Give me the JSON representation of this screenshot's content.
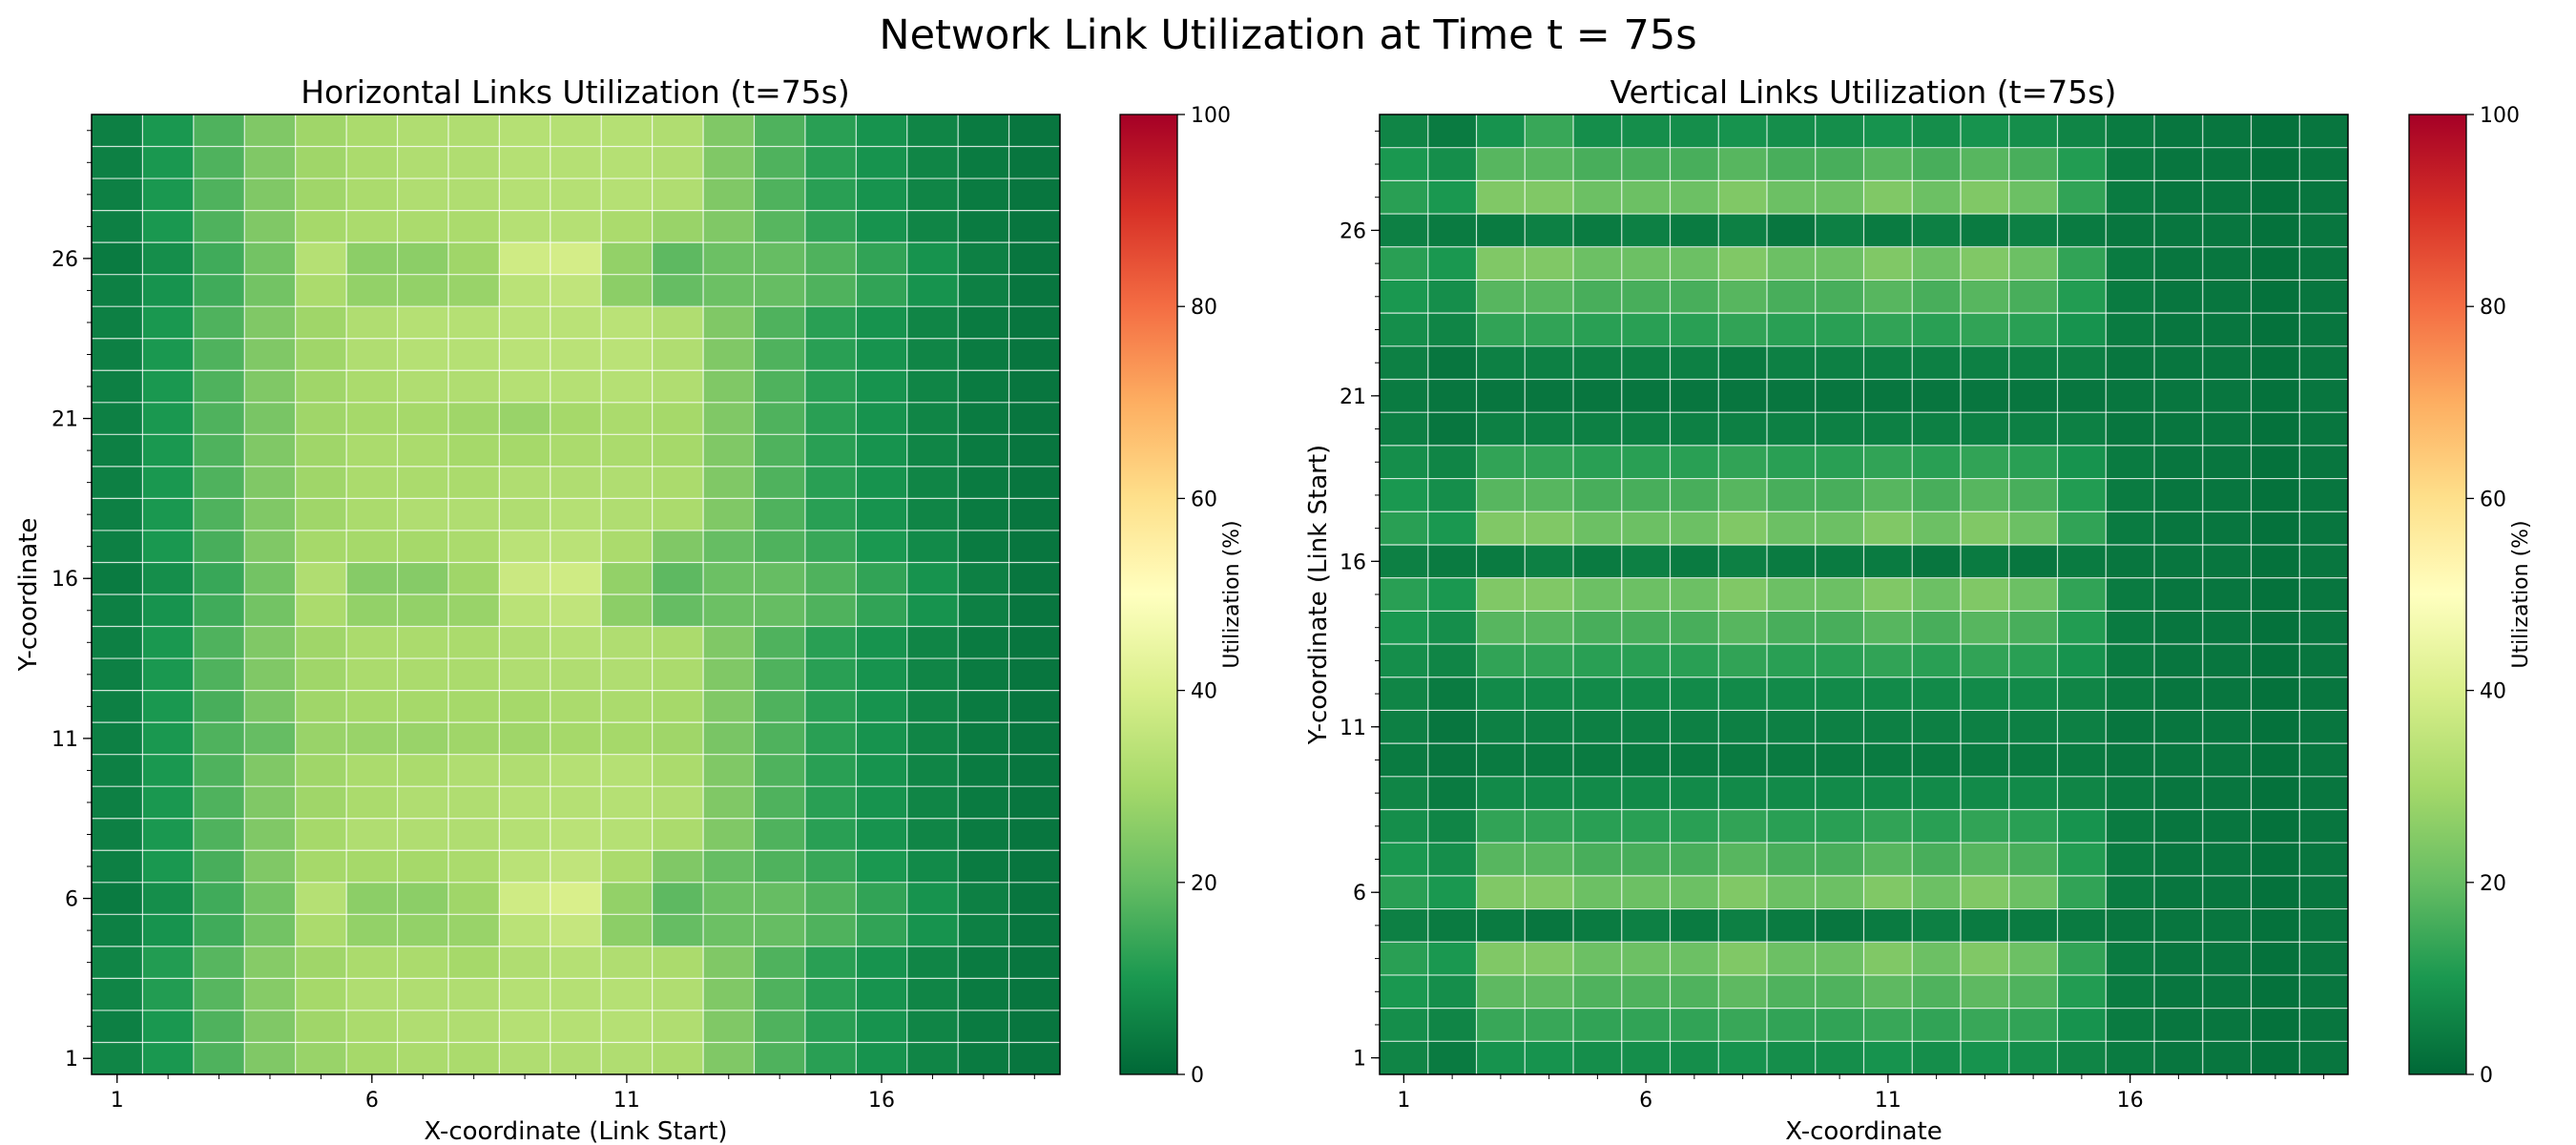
{
  "figure_title": "Network Link Utilization at Time t = 75s",
  "colors": {
    "colormap": "RdYlGn_r",
    "grid_line": "#ffffff",
    "frame": "#000000"
  },
  "chart_data": [
    {
      "type": "heatmap",
      "title": "Horizontal Links Utilization (t=75s)",
      "xlabel": "X-coordinate (Link Start)",
      "ylabel": "Y-coordinate",
      "colorbar_label": "Utilization (%)",
      "colorbar_ticks": [
        "0",
        "20",
        "40",
        "60",
        "80",
        "100"
      ],
      "value_range": [
        0,
        100
      ],
      "x_ticks": [
        "1",
        "6",
        "11",
        "16"
      ],
      "y_ticks": [
        "1",
        "6",
        "11",
        "16",
        "21",
        "26"
      ],
      "n_cols": 19,
      "n_rows": 30,
      "x_start": 1,
      "y_start": 1,
      "row_order": "bottom-to-top",
      "grid": true,
      "values": [
        [
          6,
          10,
          17,
          24,
          28,
          30,
          31,
          31,
          32,
          32,
          32,
          31,
          24,
          17,
          12,
          9,
          6,
          4,
          3
        ],
        [
          5,
          10,
          17,
          24,
          29,
          31,
          32,
          32,
          33,
          33,
          33,
          32,
          24,
          17,
          12,
          9,
          6,
          4,
          3
        ],
        [
          6,
          11,
          18,
          25,
          30,
          32,
          32,
          32,
          33,
          33,
          33,
          32,
          24,
          17,
          12,
          9,
          6,
          4,
          3
        ],
        [
          6,
          11,
          18,
          25,
          29,
          31,
          31,
          30,
          32,
          33,
          32,
          31,
          24,
          17,
          12,
          9,
          6,
          4,
          3
        ],
        [
          5,
          9,
          15,
          22,
          31,
          27,
          27,
          28,
          34,
          36,
          26,
          20,
          21,
          20,
          17,
          13,
          9,
          5,
          3
        ],
        [
          4,
          8,
          15,
          22,
          33,
          26,
          26,
          29,
          38,
          40,
          27,
          19,
          21,
          20,
          17,
          13,
          9,
          5,
          3
        ],
        [
          5,
          10,
          16,
          24,
          30,
          30,
          30,
          31,
          34,
          35,
          31,
          24,
          20,
          17,
          14,
          10,
          7,
          4,
          3
        ],
        [
          5,
          10,
          17,
          24,
          30,
          32,
          32,
          32,
          33,
          34,
          33,
          31,
          24,
          17,
          12,
          9,
          6,
          4,
          3
        ],
        [
          5,
          10,
          17,
          24,
          29,
          31,
          32,
          32,
          33,
          33,
          33,
          32,
          24,
          17,
          12,
          9,
          6,
          4,
          3
        ],
        [
          5,
          10,
          17,
          24,
          29,
          31,
          31,
          32,
          32,
          33,
          33,
          31,
          24,
          17,
          12,
          9,
          6,
          4,
          3
        ],
        [
          5,
          10,
          17,
          20,
          28,
          28,
          28,
          29,
          29,
          30,
          30,
          29,
          23,
          17,
          12,
          9,
          6,
          4,
          3
        ],
        [
          5,
          10,
          16,
          23,
          29,
          30,
          30,
          30,
          30,
          31,
          31,
          30,
          24,
          17,
          12,
          9,
          6,
          4,
          3
        ],
        [
          5,
          10,
          17,
          24,
          29,
          31,
          31,
          31,
          32,
          32,
          32,
          31,
          24,
          17,
          12,
          9,
          6,
          4,
          3
        ],
        [
          5,
          10,
          17,
          24,
          29,
          31,
          31,
          31,
          32,
          33,
          32,
          31,
          24,
          17,
          12,
          9,
          6,
          4,
          3
        ],
        [
          5,
          9,
          15,
          22,
          31,
          27,
          27,
          28,
          34,
          35,
          26,
          20,
          21,
          20,
          17,
          13,
          9,
          5,
          3
        ],
        [
          4,
          8,
          14,
          22,
          32,
          25,
          25,
          29,
          37,
          38,
          27,
          19,
          21,
          20,
          17,
          13,
          9,
          5,
          3
        ],
        [
          5,
          10,
          16,
          24,
          30,
          30,
          30,
          31,
          34,
          34,
          31,
          24,
          20,
          17,
          14,
          10,
          7,
          4,
          3
        ],
        [
          5,
          10,
          17,
          24,
          29,
          31,
          32,
          32,
          32,
          33,
          32,
          31,
          24,
          17,
          12,
          9,
          6,
          4,
          3
        ],
        [
          5,
          10,
          17,
          24,
          29,
          31,
          31,
          31,
          32,
          32,
          32,
          31,
          24,
          17,
          12,
          9,
          6,
          4,
          3
        ],
        [
          5,
          10,
          17,
          24,
          29,
          31,
          31,
          30,
          30,
          31,
          31,
          30,
          24,
          17,
          12,
          9,
          6,
          4,
          3
        ],
        [
          5,
          10,
          17,
          23,
          29,
          30,
          30,
          29,
          28,
          30,
          31,
          30,
          24,
          17,
          12,
          9,
          6,
          4,
          3
        ],
        [
          5,
          10,
          17,
          24,
          29,
          31,
          32,
          32,
          33,
          33,
          33,
          32,
          24,
          17,
          12,
          9,
          6,
          4,
          3
        ],
        [
          5,
          10,
          17,
          24,
          29,
          32,
          33,
          33,
          34,
          34,
          34,
          32,
          24,
          17,
          12,
          9,
          6,
          4,
          3
        ],
        [
          5,
          10,
          17,
          24,
          29,
          32,
          33,
          33,
          34,
          34,
          34,
          32,
          24,
          17,
          12,
          9,
          6,
          4,
          3
        ],
        [
          5,
          9,
          15,
          22,
          31,
          27,
          27,
          28,
          34,
          35,
          26,
          20,
          21,
          20,
          17,
          13,
          9,
          5,
          3
        ],
        [
          4,
          8,
          15,
          22,
          33,
          26,
          26,
          29,
          38,
          39,
          27,
          19,
          21,
          20,
          17,
          13,
          9,
          5,
          3
        ],
        [
          5,
          10,
          17,
          24,
          30,
          31,
          31,
          31,
          33,
          33,
          31,
          28,
          24,
          18,
          13,
          9,
          6,
          4,
          3
        ],
        [
          5,
          10,
          17,
          24,
          29,
          31,
          32,
          32,
          33,
          33,
          33,
          32,
          24,
          17,
          12,
          9,
          6,
          4,
          3
        ],
        [
          5,
          10,
          17,
          24,
          29,
          31,
          32,
          32,
          33,
          33,
          33,
          32,
          24,
          17,
          12,
          9,
          6,
          4,
          3
        ],
        [
          5,
          10,
          17,
          24,
          29,
          31,
          32,
          32,
          33,
          33,
          33,
          32,
          24,
          17,
          12,
          9,
          6,
          4,
          3
        ]
      ]
    },
    {
      "type": "heatmap",
      "title": "Vertical Links Utilization (t=75s)",
      "xlabel": "X-coordinate",
      "ylabel": "Y-coordinate (Link Start)",
      "colorbar_label": "Utilization (%)",
      "colorbar_ticks": [
        "0",
        "20",
        "40",
        "60",
        "80",
        "100"
      ],
      "value_range": [
        0,
        100
      ],
      "x_ticks": [
        "1",
        "6",
        "11",
        "16"
      ],
      "y_ticks": [
        "1",
        "6",
        "11",
        "16",
        "21",
        "26"
      ],
      "n_cols": 20,
      "n_rows": 29,
      "x_start": 1,
      "y_start": 1,
      "row_order": "bottom-to-top",
      "grid": true,
      "values": [
        [
          6,
          4,
          9,
          9,
          8,
          8,
          8,
          9,
          8,
          8,
          9,
          8,
          9,
          8,
          6,
          4,
          3,
          3,
          2,
          3
        ],
        [
          8,
          6,
          14,
          14,
          13,
          13,
          13,
          14,
          13,
          13,
          14,
          13,
          14,
          13,
          9,
          4,
          3,
          3,
          2,
          3
        ],
        [
          10,
          8,
          19,
          19,
          17,
          17,
          17,
          19,
          17,
          17,
          19,
          17,
          19,
          17,
          11,
          4,
          3,
          3,
          2,
          3
        ],
        [
          12,
          10,
          24,
          24,
          21,
          21,
          21,
          24,
          21,
          21,
          24,
          21,
          24,
          21,
          13,
          4,
          3,
          3,
          2,
          3
        ],
        [
          5,
          4,
          4,
          3,
          4,
          5,
          4,
          5,
          4,
          3,
          4,
          5,
          4,
          4,
          4,
          3,
          3,
          3,
          2,
          3
        ],
        [
          12,
          10,
          24,
          24,
          21,
          21,
          21,
          24,
          21,
          21,
          24,
          21,
          24,
          21,
          13,
          4,
          3,
          3,
          2,
          3
        ],
        [
          10,
          8,
          18,
          18,
          16,
          16,
          16,
          18,
          16,
          16,
          18,
          16,
          18,
          16,
          11,
          4,
          3,
          3,
          2,
          3
        ],
        [
          8,
          6,
          13,
          13,
          12,
          12,
          12,
          13,
          12,
          12,
          13,
          12,
          13,
          12,
          9,
          4,
          3,
          3,
          2,
          3
        ],
        [
          6,
          4,
          7,
          7,
          7,
          7,
          7,
          7,
          7,
          7,
          7,
          7,
          7,
          7,
          6,
          4,
          3,
          3,
          2,
          3
        ],
        [
          4,
          3,
          4,
          4,
          4,
          4,
          4,
          4,
          4,
          4,
          4,
          4,
          4,
          4,
          4,
          3,
          3,
          3,
          2,
          3
        ],
        [
          5,
          3,
          5,
          5,
          5,
          5,
          5,
          5,
          5,
          5,
          5,
          5,
          5,
          5,
          5,
          3,
          3,
          3,
          2,
          3
        ],
        [
          6,
          4,
          7,
          7,
          7,
          7,
          7,
          7,
          7,
          7,
          7,
          7,
          7,
          7,
          6,
          4,
          3,
          3,
          2,
          3
        ],
        [
          8,
          6,
          13,
          13,
          12,
          12,
          12,
          13,
          12,
          12,
          13,
          12,
          13,
          12,
          9,
          4,
          3,
          3,
          2,
          3
        ],
        [
          10,
          8,
          18,
          18,
          16,
          16,
          16,
          18,
          16,
          16,
          18,
          16,
          18,
          16,
          11,
          4,
          3,
          3,
          2,
          3
        ],
        [
          12,
          10,
          24,
          24,
          21,
          21,
          21,
          24,
          21,
          21,
          24,
          21,
          24,
          21,
          13,
          4,
          3,
          3,
          2,
          3
        ],
        [
          5,
          4,
          4,
          5,
          4,
          5,
          4,
          5,
          4,
          4,
          4,
          3,
          4,
          3,
          4,
          3,
          3,
          3,
          2,
          3
        ],
        [
          12,
          10,
          24,
          24,
          21,
          21,
          21,
          24,
          21,
          21,
          24,
          21,
          24,
          21,
          13,
          4,
          3,
          3,
          2,
          3
        ],
        [
          10,
          8,
          18,
          18,
          16,
          16,
          16,
          18,
          16,
          16,
          18,
          16,
          18,
          16,
          11,
          4,
          3,
          3,
          2,
          3
        ],
        [
          8,
          6,
          13,
          13,
          12,
          12,
          12,
          13,
          12,
          12,
          13,
          12,
          13,
          12,
          9,
          4,
          3,
          3,
          2,
          3
        ],
        [
          5,
          3,
          5,
          5,
          5,
          5,
          5,
          5,
          5,
          5,
          5,
          5,
          5,
          5,
          5,
          3,
          3,
          3,
          2,
          3
        ],
        [
          4,
          3,
          3,
          3,
          3,
          3,
          3,
          3,
          3,
          3,
          3,
          3,
          3,
          3,
          3,
          3,
          3,
          3,
          2,
          3
        ],
        [
          5,
          3,
          5,
          5,
          5,
          5,
          5,
          4,
          5,
          5,
          5,
          5,
          5,
          5,
          5,
          3,
          3,
          3,
          2,
          3
        ],
        [
          8,
          6,
          13,
          13,
          12,
          12,
          12,
          13,
          12,
          12,
          13,
          12,
          13,
          12,
          9,
          4,
          3,
          3,
          2,
          3
        ],
        [
          10,
          8,
          18,
          18,
          16,
          16,
          16,
          18,
          16,
          16,
          18,
          16,
          18,
          16,
          11,
          4,
          3,
          3,
          2,
          3
        ],
        [
          12,
          10,
          24,
          24,
          21,
          21,
          21,
          24,
          21,
          21,
          24,
          21,
          24,
          21,
          13,
          4,
          3,
          3,
          2,
          3
        ],
        [
          5,
          4,
          4,
          5,
          4,
          5,
          4,
          5,
          3,
          5,
          4,
          5,
          4,
          5,
          4,
          3,
          3,
          3,
          2,
          3
        ],
        [
          12,
          10,
          24,
          24,
          21,
          21,
          21,
          24,
          21,
          21,
          24,
          21,
          24,
          21,
          13,
          4,
          3,
          3,
          2,
          3
        ],
        [
          10,
          8,
          18,
          18,
          16,
          16,
          16,
          18,
          16,
          16,
          18,
          16,
          18,
          16,
          11,
          4,
          3,
          3,
          2,
          3
        ],
        [
          6,
          4,
          9,
          14,
          8,
          8,
          8,
          9,
          8,
          8,
          9,
          8,
          9,
          8,
          6,
          4,
          3,
          3,
          2,
          3
        ]
      ]
    }
  ]
}
